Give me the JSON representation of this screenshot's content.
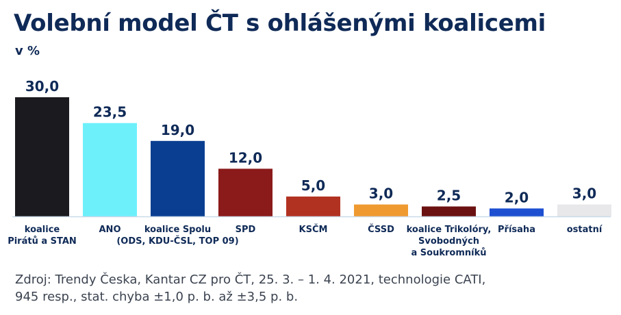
{
  "title": "Volební model ČT s ohlášenými koalicemi",
  "subtitle": "v %",
  "source_lines": [
    "Zdroj: Trendy Česka, Kantar CZ pro ČT, 25. 3. – 1. 4. 2021, technologie CATI,",
    "945 resp., stat. chyba ±1,0 p. b. až ±3,5 p. b."
  ],
  "chart_data": {
    "type": "bar",
    "title": "Volební model ČT s ohlášenými koalicemi",
    "ylabel": "v %",
    "xlabel": "",
    "ylim": [
      0,
      30
    ],
    "grid": false,
    "legend": "none",
    "categories": [
      [
        "koalice",
        "Pirátů a STAN"
      ],
      [
        "ANO"
      ],
      [
        "koalice Spolu",
        "(ODS, KDU-ČSL, TOP 09)"
      ],
      [
        "SPD"
      ],
      [
        "KSČM"
      ],
      [
        "ČSSD"
      ],
      [
        "koalice Trikolóry,",
        "Svobodných",
        "a Soukromníků"
      ],
      [
        "Přísaha"
      ],
      [
        "ostatní"
      ]
    ],
    "values": [
      30.0,
      23.5,
      19.0,
      12.0,
      5.0,
      3.0,
      2.5,
      2.0,
      3.0
    ],
    "value_labels": [
      "30,0",
      "23,5",
      "19,0",
      "12,0",
      "5,0",
      "3,0",
      "2,5",
      "2,0",
      "3,0"
    ],
    "colors": [
      "#1b1b1f",
      "#6ef0fb",
      "#0a3e91",
      "#8b1a1a",
      "#b23222",
      "#ef9a30",
      "#6b1111",
      "#1d4fd1",
      "#e8e8ea"
    ]
  }
}
